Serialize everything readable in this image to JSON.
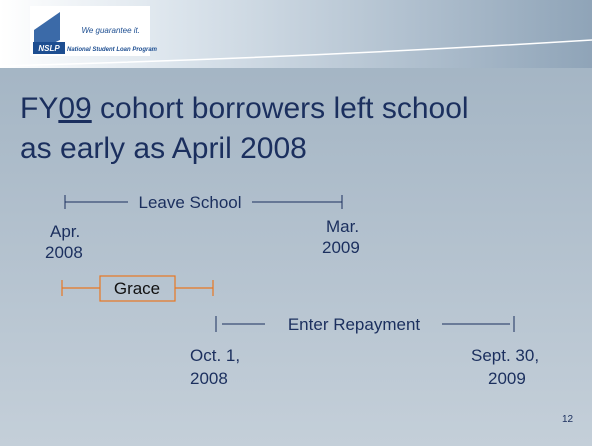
{
  "header": {
    "logo": "NSLP",
    "program": "National Student Loan Program",
    "tagline": "We guarantee it."
  },
  "title": {
    "line1": [
      "FY",
      "09",
      " cohort borrowers left school"
    ],
    "line2": "as early as April 2008"
  },
  "timeline": {
    "leave": {
      "label": "Leave School",
      "start": [
        "Apr.",
        "2008"
      ],
      "end": [
        "Mar.",
        "2009"
      ]
    },
    "grace": {
      "label": "Grace"
    },
    "repayment": {
      "label": "Enter Repayment",
      "start": [
        "Oct. 1,",
        "2008"
      ],
      "end": [
        "Sept. 30,",
        "2009"
      ]
    }
  },
  "page_number": "12"
}
